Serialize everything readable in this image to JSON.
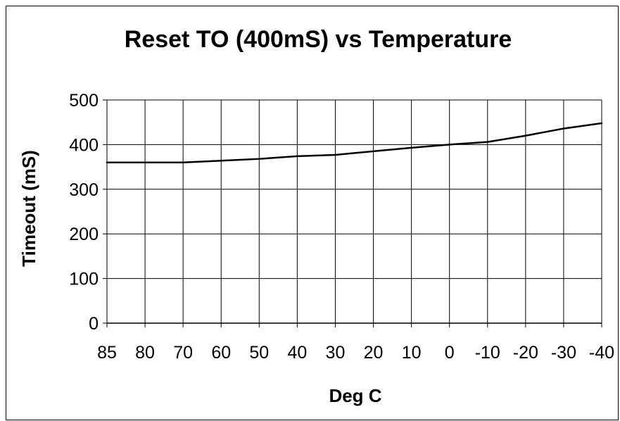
{
  "chart_data": {
    "type": "line",
    "title": "Reset TO (400mS) vs Temperature",
    "xlabel": "Deg C",
    "ylabel": "Timeout (mS)",
    "categories": [
      "85",
      "80",
      "70",
      "60",
      "50",
      "40",
      "30",
      "20",
      "10",
      "0",
      "-10",
      "-20",
      "-30",
      "-40"
    ],
    "series": [
      {
        "values": [
          360,
          360,
          360,
          364,
          368,
          374,
          377,
          385,
          393,
          400,
          406,
          420,
          436,
          448
        ]
      }
    ],
    "ylim": [
      0,
      500
    ],
    "yticks": [
      "0",
      "100",
      "200",
      "300",
      "400",
      "500"
    ],
    "grid": true,
    "legend": "none",
    "colors": {
      "line": "#000000",
      "grid": "#000000",
      "background": "#ffffff"
    }
  }
}
